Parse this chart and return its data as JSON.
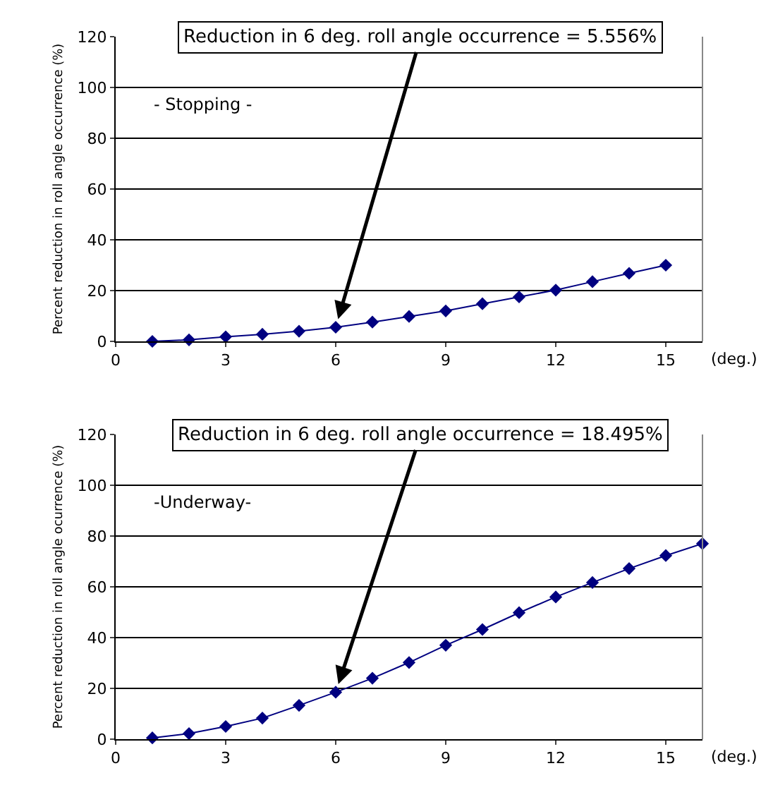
{
  "chart_data": [
    {
      "type": "line",
      "ylabel": "Percent reduction in roll angle occurrence (%)",
      "xlabel": "(deg.)",
      "x": [
        1,
        2,
        3,
        4,
        5,
        6,
        7,
        8,
        9,
        10,
        11,
        12,
        13,
        14,
        15
      ],
      "series": [
        {
          "color": "#000080",
          "values": [
            0,
            0.6,
            1.8,
            2.8,
            4,
            5.556,
            7.6,
            9.8,
            12,
            14.8,
            17.5,
            20.2,
            23.5,
            26.8,
            30
          ]
        }
      ],
      "xlim": [
        0,
        16
      ],
      "xticks": [
        0,
        3,
        6,
        9,
        12,
        15
      ],
      "ylim": [
        0,
        120
      ],
      "yticks": [
        0,
        20,
        40,
        60,
        80,
        100,
        120
      ],
      "grid": "y",
      "marker": "diamond",
      "line_style": "solid",
      "annotations": [
        {
          "text": "Reduction in 6 deg. roll angle occurrence = 5.556%",
          "x": 6,
          "y": 5.556
        },
        "- Stopping -"
      ]
    },
    {
      "type": "line",
      "ylabel": "Percent reduction in roll angle ocurrence (%)",
      "xlabel": "(deg.)",
      "x": [
        1,
        2,
        3,
        4,
        5,
        6,
        7,
        8,
        9,
        10,
        11,
        12,
        13,
        14,
        15,
        16
      ],
      "series": [
        {
          "color": "#000080",
          "values": [
            0.5,
            2.2,
            5,
            8.3,
            13.3,
            18.495,
            24,
            30.2,
            37,
            43.2,
            49.8,
            56,
            61.7,
            67.2,
            72.3,
            77
          ]
        }
      ],
      "xlim": [
        0,
        16
      ],
      "xticks": [
        0,
        3,
        6,
        9,
        12,
        15
      ],
      "ylim": [
        0,
        120
      ],
      "yticks": [
        0,
        20,
        40,
        60,
        80,
        100,
        120
      ],
      "grid": "y",
      "marker": "diamond",
      "line_style": "solid",
      "annotations": [
        {
          "text": "Reduction in 6 deg. roll angle occurrence = 18.495%",
          "x": 6,
          "y": 18.495
        },
        "-Underway-"
      ]
    }
  ]
}
